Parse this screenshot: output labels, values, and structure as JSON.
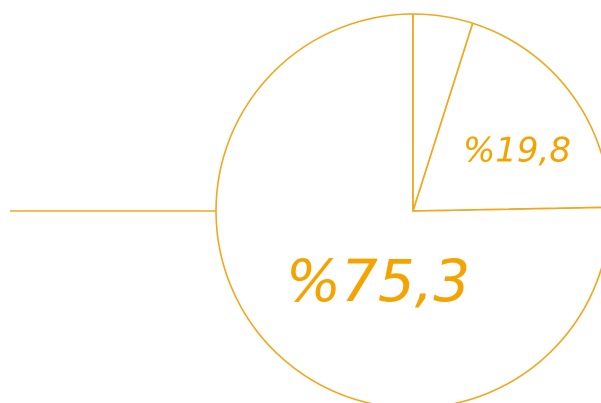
{
  "chart_data": {
    "type": "pie",
    "values": [
      4.9,
      19.8,
      75.3
    ],
    "value_labels": [
      null,
      "%19,8",
      "%75,3"
    ],
    "color": "#f0a81e",
    "label_color": "#f5a300"
  }
}
